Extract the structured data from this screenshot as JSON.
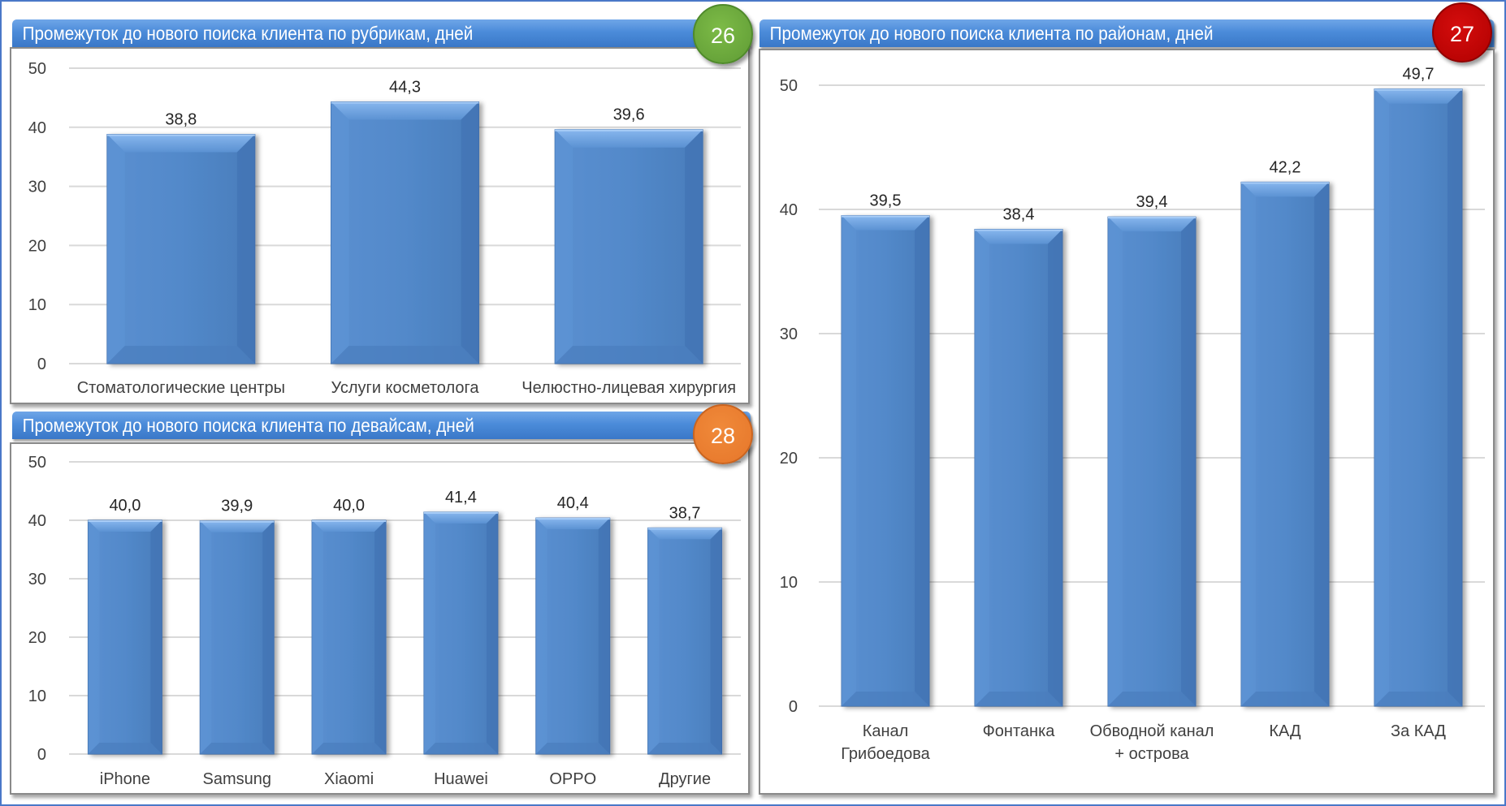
{
  "colors": {
    "frame_border": "#4a78c8",
    "bar_fill": "#5289ca",
    "bar_top_highlight": "#8ab8f0",
    "gridline": "#d9d9d9",
    "badge_green": "#6aa83c",
    "badge_red": "#c00000",
    "badge_orange": "#ed7d31"
  },
  "panels": [
    {
      "id": "rubrics",
      "title": "Промежуток до нового поиска клиента по рубрикам, дней",
      "badge": "26",
      "badge_color": "green"
    },
    {
      "id": "districts",
      "title": "Промежуток до нового поиска клиента по районам, дней",
      "badge": "27",
      "badge_color": "red"
    },
    {
      "id": "devices",
      "title": "Промежуток до нового поиска клиента по девайсам, дней",
      "badge": "28",
      "badge_color": "orange"
    }
  ],
  "chart_data": [
    {
      "type": "bar",
      "title": "Промежуток до нового поиска клиента по рубрикам, дней",
      "xlabel": "",
      "ylabel": "",
      "ylim": [
        0,
        50
      ],
      "yticks": [
        "0",
        "10",
        "20",
        "30",
        "40",
        "50"
      ],
      "grid": true,
      "categories": [
        [
          "Стоматологические  центры"
        ],
        [
          "Услуги  косметолога"
        ],
        [
          "Челюстно-лицевая  хирургия"
        ]
      ],
      "values": [
        38.8,
        44.3,
        39.6
      ],
      "value_labels": [
        "38,8",
        "44,3",
        "39,6"
      ]
    },
    {
      "type": "bar",
      "title": "Промежуток до нового поиска клиента по районам, дней",
      "xlabel": "",
      "ylabel": "",
      "ylim": [
        0,
        50
      ],
      "yticks": [
        "0",
        "10",
        "20",
        "30",
        "40",
        "50"
      ],
      "grid": true,
      "categories": [
        [
          "Канал",
          "Грибоедова"
        ],
        [
          "Фонтанка"
        ],
        [
          "Обводной канал",
          "+ острова"
        ],
        [
          "КАД"
        ],
        [
          "За КАД"
        ]
      ],
      "values": [
        39.5,
        38.4,
        39.4,
        42.2,
        49.7
      ],
      "value_labels": [
        "39,5",
        "38,4",
        "39,4",
        "42,2",
        "49,7"
      ]
    },
    {
      "type": "bar",
      "title": "Промежуток до нового поиска клиента по девайсам, дней",
      "xlabel": "",
      "ylabel": "",
      "ylim": [
        0,
        50
      ],
      "yticks": [
        "0",
        "10",
        "20",
        "30",
        "40",
        "50"
      ],
      "grid": true,
      "categories": [
        [
          "iPhone"
        ],
        [
          "Samsung"
        ],
        [
          "Xiaomi"
        ],
        [
          "Huawei"
        ],
        [
          "OPPO"
        ],
        [
          "Другие"
        ]
      ],
      "values": [
        40.0,
        39.9,
        40.0,
        41.4,
        40.4,
        38.7
      ],
      "value_labels": [
        "40,0",
        "39,9",
        "40,0",
        "41,4",
        "40,4",
        "38,7"
      ]
    }
  ]
}
